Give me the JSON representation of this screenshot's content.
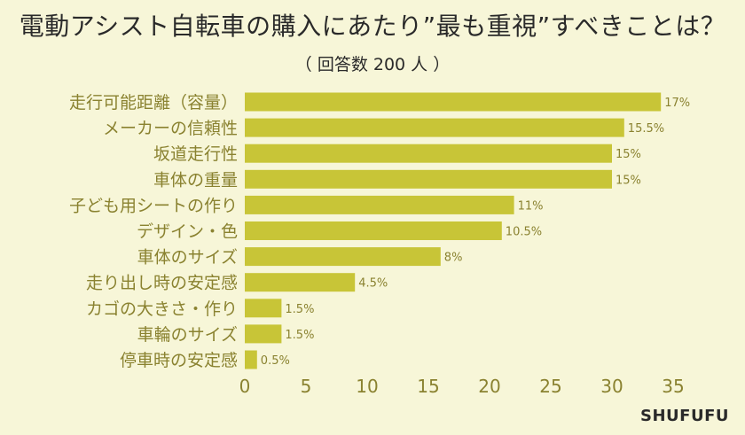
{
  "title": "電動アシスト自転車の購入にあたり”最も重視”すべきことは？",
  "subtitle": "（ 回答数 200 人 ）",
  "brand": "SHUFUFU",
  "colors": {
    "bar": "#c8c537",
    "label": "#8a8230",
    "value": "#8a8230",
    "tick": "#8a8230",
    "background": "#f7f6d8"
  },
  "chart_data": {
    "type": "bar",
    "orientation": "horizontal",
    "categories": [
      "走行可能距離（容量）",
      "メーカーの信頼性",
      "坂道走行性",
      "車体の重量",
      "子ども用シートの作り",
      "デザイン・色",
      "車体のサイズ",
      "走り出し時の安定感",
      "カゴの大きさ・作り",
      "車輪のサイズ",
      "停車時の安定感"
    ],
    "values": [
      34,
      31,
      30,
      30,
      22,
      21,
      16,
      9,
      3,
      3,
      1
    ],
    "value_labels": [
      "17%",
      "15.5%",
      "15%",
      "15%",
      "11%",
      "10.5%",
      "8%",
      "4.5%",
      "1.5%",
      "1.5%",
      "0.5%"
    ],
    "xlim": [
      0,
      35
    ],
    "xticks": [
      "0",
      "5",
      "10",
      "15",
      "20",
      "25",
      "30",
      "35"
    ],
    "grid": false,
    "legend": "none"
  }
}
